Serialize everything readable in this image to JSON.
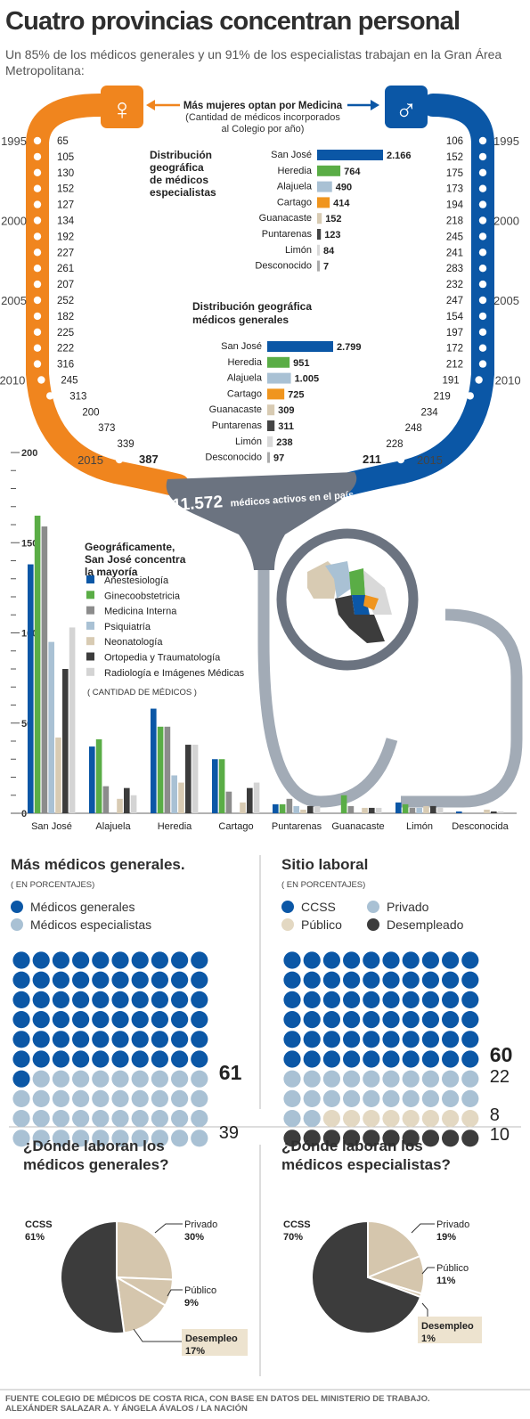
{
  "header": {
    "title": "Cuatro provincias concentran personal",
    "subtitle": "Un 85% de los médicos generales y un 91% de los especialistas trabajan en la Gran Área Metropolitana:"
  },
  "colors": {
    "orange": "#f0851e",
    "blue": "#0b57a6",
    "gray": "#6e7681",
    "light_blue": "#a9c1d4",
    "beige": "#d8cbb3",
    "dark": "#3c3c3c"
  },
  "gender": {
    "title": "Más mujeres optan por Medicina",
    "note_line1": "(Cantidad de médicos incorporados",
    "note_line2": "al Colegio por año)",
    "female_symbol": "♀",
    "male_symbol": "♂",
    "years": [
      "1995",
      "2000",
      "2005",
      "2010",
      "2015"
    ],
    "women": [
      65,
      105,
      130,
      152,
      127,
      134,
      192,
      227,
      261,
      207,
      252,
      182,
      225,
      222,
      316,
      245,
      313,
      200,
      373,
      339,
      387
    ],
    "men": [
      106,
      152,
      175,
      173,
      194,
      218,
      245,
      241,
      283,
      232,
      247,
      154,
      197,
      172,
      212,
      191,
      219,
      234,
      248,
      228,
      211
    ],
    "women_labels": [
      "65",
      "105",
      "130",
      "152",
      "127",
      "134",
      "192",
      "227",
      "261",
      "207",
      "252",
      "182",
      "225",
      "222",
      "316",
      "245",
      "313",
      "200",
      "373",
      "339",
      "387"
    ],
    "men_labels": [
      "106",
      "152",
      "175",
      "173",
      "194",
      "218",
      "245",
      "241",
      "283",
      "232",
      "247",
      "154",
      "197",
      "172",
      "212",
      "191",
      "219",
      "234",
      "248",
      "228",
      "211"
    ]
  },
  "total": {
    "number": "11.572",
    "text": "médicos activos en el país"
  },
  "chart_data": [
    {
      "type": "bar",
      "title": "Distribución geográfica de médicos especialistas",
      "categories": [
        "San José",
        "Heredia",
        "Alajuela",
        "Cartago",
        "Guanacaste",
        "Puntarenas",
        "Limón",
        "Desconocido"
      ],
      "values": [
        2166,
        764,
        490,
        414,
        152,
        123,
        84,
        7
      ],
      "value_labels": [
        "2.166",
        "764",
        "490",
        "414",
        "152",
        "123",
        "84",
        "7"
      ],
      "colors": [
        "#0b57a6",
        "#5aad46",
        "#a9c1d4",
        "#f0951e",
        "#d8cbb3",
        "#444444",
        "#d9d9d9",
        "#aaaaaa"
      ]
    },
    {
      "type": "bar",
      "title": "Distribución geográfica médicos generales",
      "categories": [
        "San José",
        "Heredia",
        "Alajuela",
        "Cartago",
        "Guanacaste",
        "Puntarenas",
        "Limón",
        "Desconocido"
      ],
      "values": [
        2799,
        951,
        1005,
        725,
        309,
        311,
        238,
        97
      ],
      "value_labels": [
        "2.799",
        "951",
        "1.005",
        "725",
        "309",
        "311",
        "238",
        "97"
      ],
      "colors": [
        "#0b57a6",
        "#5aad46",
        "#a9c1d4",
        "#f0951e",
        "#d8cbb3",
        "#444444",
        "#d9d9d9",
        "#aaaaaa"
      ]
    },
    {
      "type": "bar",
      "title": "Geográficamente, San José concentra la mayoría",
      "note": "( CANTIDAD DE MÉDICOS )",
      "ylim": [
        0,
        200
      ],
      "yticks": [
        "200",
        "150",
        "100",
        "50",
        "0"
      ],
      "categories": [
        "San José",
        "Alajuela",
        "Heredia",
        "Cartago",
        "Puntarenas",
        "Guanacaste",
        "Limón",
        "Desconocida"
      ],
      "series": [
        {
          "name": "Anestesiología",
          "color": "#0b57a6",
          "values": [
            138,
            37,
            58,
            30,
            5,
            0,
            6,
            1
          ]
        },
        {
          "name": "Ginecoobstetricia",
          "color": "#5aad46",
          "values": [
            165,
            41,
            48,
            30,
            5,
            10,
            5,
            0
          ]
        },
        {
          "name": "Medicina Interna",
          "color": "#8c8c8c",
          "values": [
            159,
            15,
            48,
            12,
            8,
            4,
            3,
            0
          ]
        },
        {
          "name": "Psiquiatría",
          "color": "#a9c1d4",
          "values": [
            95,
            0,
            21,
            0,
            4,
            0,
            3,
            0
          ]
        },
        {
          "name": "Neonatología",
          "color": "#d8cbb3",
          "values": [
            42,
            8,
            17,
            6,
            2,
            3,
            4,
            2
          ]
        },
        {
          "name": "Ortopedia y Traumatología",
          "color": "#3c3c3c",
          "values": [
            80,
            14,
            38,
            14,
            4,
            3,
            4,
            1
          ]
        },
        {
          "name": "Radiología e Imágenes Médicas",
          "color": "#d4d4d4",
          "values": [
            103,
            10,
            38,
            17,
            4,
            3,
            3,
            1
          ]
        }
      ]
    },
    {
      "type": "waffle",
      "title": "Más médicos generales.",
      "note": "( EN PORCENTAJES)",
      "series": [
        {
          "name": "Médicos generales",
          "value": 61,
          "color": "#0b57a6"
        },
        {
          "name": "Médicos especialistas",
          "value": 39,
          "color": "#a9c1d4"
        }
      ],
      "value_labels": [
        "61",
        "39"
      ]
    },
    {
      "type": "waffle",
      "title": "Sitio laboral",
      "note": "( EN PORCENTAJES)",
      "series": [
        {
          "name": "CCSS",
          "value": 60,
          "color": "#0b57a6"
        },
        {
          "name": "Privado",
          "value": 22,
          "color": "#a9c1d4"
        },
        {
          "name": "Público",
          "value": 8,
          "color": "#e3d8c2"
        },
        {
          "name": "Desempleado",
          "value": 10,
          "color": "#3c3c3c"
        }
      ],
      "value_labels": [
        "60",
        "22",
        "8",
        "10"
      ]
    },
    {
      "type": "pie",
      "title": "¿Dónde laboran los médicos generales?",
      "slices": [
        {
          "name": "CCSS",
          "value": 61,
          "label": "61%",
          "color": "#3c3c3c"
        },
        {
          "name": "Privado",
          "value": 30,
          "label": "30%",
          "color": "#d5c6ad"
        },
        {
          "name": "Público",
          "value": 9,
          "label": "9%",
          "color": "#d5c6ad"
        },
        {
          "name": "Desempleo",
          "value": 17,
          "label": "17%",
          "color": "#d5c6ad"
        }
      ]
    },
    {
      "type": "pie",
      "title": "¿Dónde laboran los médicos especialistas?",
      "slices": [
        {
          "name": "CCSS",
          "value": 70,
          "label": "70%",
          "color": "#3c3c3c"
        },
        {
          "name": "Privado",
          "value": 19,
          "label": "19%",
          "color": "#d5c6ad"
        },
        {
          "name": "Público",
          "value": 11,
          "label": "11%",
          "color": "#d5c6ad"
        },
        {
          "name": "Desempleo",
          "value": 1,
          "label": "1%",
          "color": "#d5c6ad"
        }
      ]
    }
  ],
  "footer": {
    "line1": "FUENTE COLEGIO DE MÉDICOS DE COSTA RICA, CON BASE EN DATOS DEL MINISTERIO DE TRABAJO.",
    "line2": "ALEXÁNDER SALAZAR A. Y ÁNGELA ÁVALOS / LA NACIÓN"
  }
}
